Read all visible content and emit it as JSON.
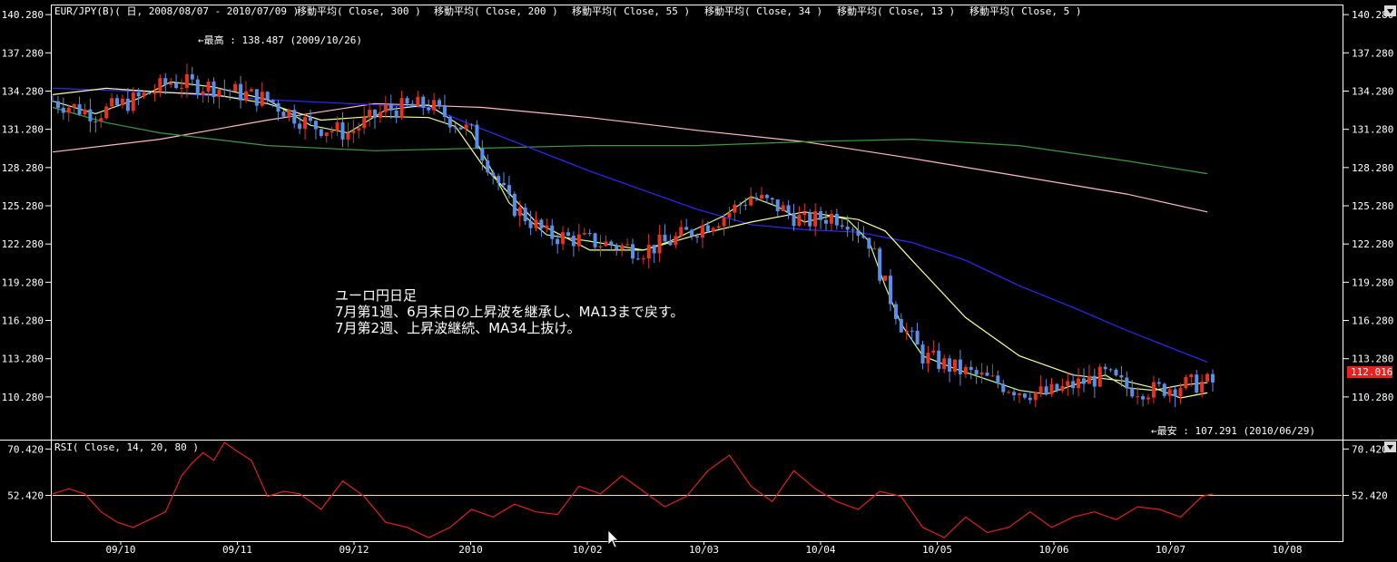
{
  "header": {
    "symbol": "EUR/JPY(B)( 日, 2008/08/07 - 2010/07/09 )",
    "ma_labels": [
      "移動平均( Close, 300 )",
      "移動平均( Close, 200 )",
      "移動平均( Close, 55 )",
      "移動平均( Close, 34 )",
      "移動平均( Close, 13 )",
      "移動平均( Close, 5 )"
    ]
  },
  "annotation": {
    "line1": "ユーロ円日足",
    "line2": "7月第1週、6月末日の上昇波を継承し、MA13まで戻す。",
    "line3": "7月第2週、上昇波継続、MA34上抜け。"
  },
  "high_note": "←最高 : 138.487 (2009/10/26)",
  "low_note": "←最安 : 107.291 (2010/06/29)",
  "last_price": "112.016",
  "rsi_label": "RSI( Close, 14, 20, 80 )",
  "colors": {
    "up": "#e8321e",
    "down": "#5a8fe8",
    "ma300": "#ffb8c8",
    "ma200": "#3c9c3c",
    "ma55": "#2a2aff",
    "ma34": "#ffff90",
    "ma13": "#ccff99",
    "ma5": "#ff3030",
    "rsi": "#e02020",
    "rsi_mid": "#ffe060",
    "price_tag": "#e82020"
  },
  "chart_data": [
    {
      "type": "candlestick",
      "title": "EUR/JPY(B)( 日, 2008/08/07 - 2010/07/09 )",
      "ylim": [
        107.0,
        141.0
      ],
      "y_ticks": [
        "140.280",
        "137.280",
        "134.280",
        "131.280",
        "128.280",
        "125.280",
        "122.280",
        "119.280",
        "116.280",
        "113.280",
        "110.280"
      ],
      "x_ticks": [
        "09/10",
        "09/11",
        "09/12",
        "2010",
        "10/02",
        "10/03",
        "10/04",
        "10/05",
        "10/06",
        "10/07",
        "10/08"
      ],
      "x_range": [
        0,
        240
      ],
      "series": [
        {
          "name": "移動平均( Close, 300 )",
          "x": [
            0,
            20,
            40,
            60,
            80,
            100,
            120,
            140,
            160,
            180,
            200,
            215
          ],
          "values": [
            129.5,
            130.5,
            132.0,
            133.3,
            133.0,
            132.2,
            131.2,
            130.3,
            129.0,
            127.6,
            126.2,
            124.8
          ]
        },
        {
          "name": "移動平均( Close, 200 )",
          "x": [
            0,
            10,
            20,
            40,
            60,
            80,
            100,
            120,
            140,
            160,
            180,
            200,
            215
          ],
          "values": [
            133.0,
            131.8,
            131.0,
            130.0,
            129.6,
            129.8,
            130.0,
            130.0,
            130.3,
            130.5,
            130.0,
            128.8,
            127.8
          ]
        },
        {
          "name": "移動平均( Close, 55 )",
          "x": [
            0,
            20,
            40,
            60,
            70,
            80,
            100,
            120,
            130,
            140,
            150,
            160,
            170,
            180,
            190,
            200,
            215
          ],
          "values": [
            134.5,
            134.2,
            133.6,
            133.2,
            133.0,
            131.3,
            128.0,
            125.0,
            123.8,
            123.4,
            123.2,
            122.4,
            121.0,
            119.0,
            117.3,
            115.5,
            113.0
          ]
        },
        {
          "name": "移動平均( Close, 34 )",
          "x": [
            0,
            10,
            20,
            30,
            40,
            50,
            60,
            70,
            75,
            80,
            90,
            100,
            110,
            120,
            130,
            140,
            150,
            155,
            160,
            170,
            180,
            190,
            200,
            205,
            210,
            215
          ],
          "values": [
            134.0,
            134.5,
            134.2,
            134.0,
            133.3,
            132.0,
            132.3,
            132.2,
            131.5,
            128.5,
            124.0,
            121.8,
            121.8,
            123.0,
            124.0,
            124.8,
            124.2,
            123.3,
            121.0,
            116.5,
            113.5,
            112.0,
            111.5,
            111.0,
            110.2,
            110.6
          ]
        },
        {
          "name": "移動平均( Close, 13 )",
          "x": [
            0,
            8,
            16,
            22,
            30,
            40,
            48,
            55,
            62,
            70,
            78,
            85,
            92,
            100,
            110,
            115,
            120,
            125,
            130,
            135,
            140,
            145,
            148,
            152,
            155,
            158,
            162,
            168,
            175,
            180,
            185,
            190,
            196,
            200,
            205,
            210,
            215
          ],
          "values": [
            133.5,
            132.5,
            133.7,
            135.0,
            134.6,
            133.6,
            131.6,
            131.0,
            132.8,
            133.2,
            131.0,
            125.5,
            123.0,
            122.5,
            121.8,
            122.5,
            123.5,
            124.5,
            126.0,
            125.2,
            124.0,
            124.5,
            124.2,
            122.5,
            119.0,
            116.0,
            113.5,
            112.5,
            111.5,
            110.8,
            110.5,
            111.2,
            112.0,
            111.0,
            110.8,
            111.2,
            111.4
          ]
        }
      ]
    },
    {
      "type": "line",
      "title": "RSI( Close, 14, 20, 80 )",
      "ylim": [
        35,
        73
      ],
      "y_ticks": [
        "70.420",
        "52.420"
      ],
      "reference_line": 52.42,
      "series": [
        {
          "name": "RSI",
          "x": [
            0,
            3,
            6,
            9,
            12,
            15,
            18,
            21,
            24,
            26,
            28,
            30,
            32,
            34,
            37,
            40,
            43,
            46,
            50,
            54,
            58,
            62,
            66,
            70,
            74,
            78,
            82,
            86,
            90,
            94,
            98,
            102,
            106,
            110,
            114,
            118,
            122,
            126,
            130,
            134,
            138,
            142,
            146,
            150,
            154,
            158,
            162,
            166,
            170,
            174,
            178,
            182,
            186,
            190,
            194,
            198,
            202,
            206,
            210,
            214,
            216
          ],
          "values": [
            53,
            55,
            53,
            46,
            42,
            40,
            43,
            46,
            60,
            65,
            69,
            66,
            73,
            70,
            66,
            52,
            54,
            53,
            47,
            58,
            52,
            42,
            40,
            36,
            40,
            47,
            44,
            49,
            46,
            45,
            56,
            53,
            60,
            54,
            48,
            52,
            62,
            68,
            56,
            50,
            62,
            55,
            50,
            47,
            54,
            52,
            40,
            36,
            44,
            38,
            40,
            46,
            40,
            44,
            46,
            43,
            48,
            47,
            44,
            52,
            53
          ]
        }
      ]
    }
  ]
}
